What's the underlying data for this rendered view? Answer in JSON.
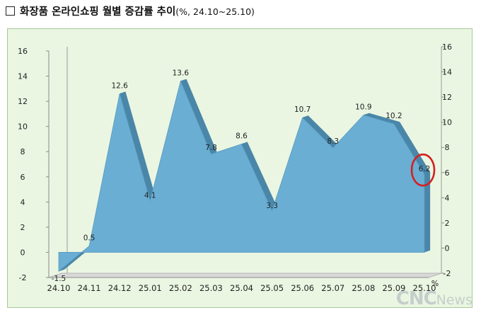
{
  "title": {
    "main": "화장품 온라인쇼핑 월별 증감률 추이",
    "sub": "(%, 24.10~25.10)"
  },
  "watermark": {
    "main": "CNC",
    "suffix": "News"
  },
  "colors": {
    "plot_bg": "#eaf6e2",
    "plot_border": "#a8c99a",
    "area_fill": "#6aaed3",
    "area_edge": "#4a86a8",
    "floor": "#d9d9d9",
    "highlight": "#d42020"
  },
  "chart_data": {
    "type": "area",
    "categories": [
      "24.10",
      "24.11",
      "24.12",
      "25.01",
      "25.02",
      "25.03",
      "25.04",
      "25.05",
      "25.06",
      "25.07",
      "25.08",
      "25.09",
      "25.10"
    ],
    "values": [
      -1.5,
      0.5,
      12.6,
      4.1,
      13.6,
      7.8,
      8.6,
      3.3,
      10.7,
      8.3,
      10.9,
      10.2,
      6.2
    ],
    "value_labels": [
      "-1.5",
      "0.5",
      "12.6",
      "4.1",
      "13.6",
      "7.8",
      "8.6",
      "3.3",
      "10.7",
      "8.3",
      "10.9",
      "10.2",
      "6.2"
    ],
    "ylim": [
      -2,
      16
    ],
    "yticks": [
      -2,
      0,
      2,
      4,
      6,
      8,
      10,
      12,
      14,
      16
    ],
    "y_unit": "%",
    "secondary_axis": true,
    "grid": false,
    "legend": "none",
    "highlighted_point": "25.10",
    "style": "3d"
  }
}
